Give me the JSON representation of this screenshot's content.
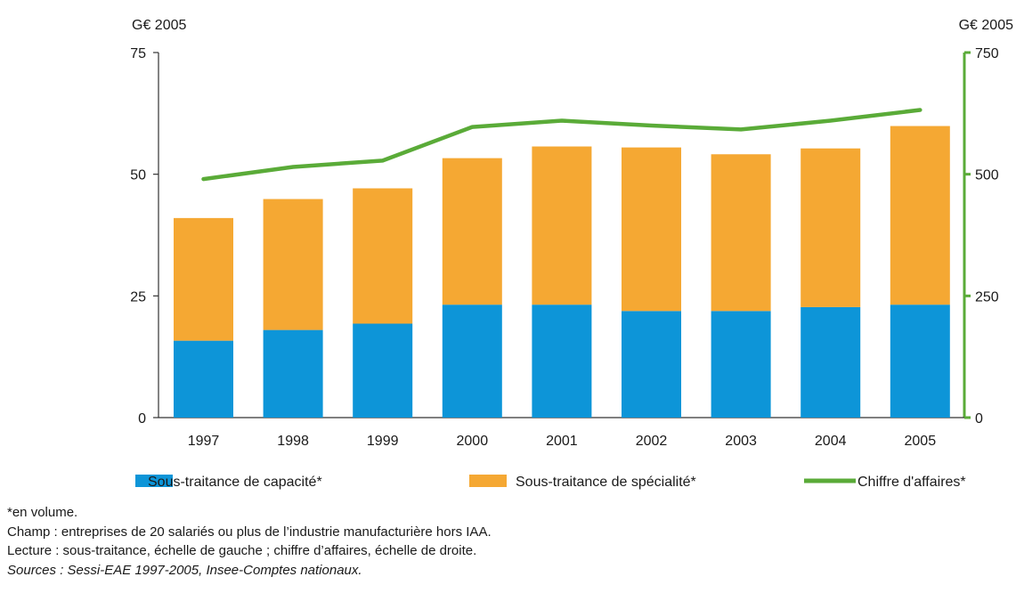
{
  "chart_data": {
    "type": "bar",
    "stacked": true,
    "categories": [
      "1997",
      "1998",
      "1999",
      "2000",
      "2001",
      "2002",
      "2003",
      "2004",
      "2005"
    ],
    "series": [
      {
        "name": "Sous-traitance de capacité*",
        "chart": "bar",
        "axis": "left",
        "color": "#0d95d8",
        "values": [
          15.8,
          18.0,
          19.3,
          23.2,
          23.2,
          21.9,
          21.9,
          22.7,
          23.2
        ]
      },
      {
        "name": "Sous-traitance de spécialité*",
        "chart": "bar",
        "axis": "left",
        "color": "#f5a833",
        "values": [
          25.2,
          26.9,
          27.8,
          30.1,
          32.5,
          33.6,
          32.2,
          32.6,
          36.7
        ]
      },
      {
        "name": "Chiffre d'affaires*",
        "chart": "line",
        "axis": "right",
        "color": "#5aab38",
        "values": [
          490,
          515,
          528,
          597,
          610,
          600,
          592,
          610,
          632
        ]
      }
    ],
    "left_axis": {
      "unit": "G€ 2005",
      "ylim": [
        0,
        75
      ],
      "ticks": [
        "0",
        "25",
        "50",
        "75"
      ]
    },
    "right_axis": {
      "unit": "G€ 2005",
      "ylim": [
        0,
        750
      ],
      "ticks": [
        "0",
        "250",
        "500",
        "750"
      ]
    },
    "grid": false,
    "legend_position": "bottom"
  },
  "notes": {
    "volume": "*en volume.",
    "champ": "Champ : entreprises de 20 salariés ou plus de l’industrie manufacturière hors IAA.",
    "lecture": "Lecture : sous-traitance, échelle de gauche ; chiffre d’affaires, échelle de droite.",
    "sources": "Sources : Sessi-EAE 1997-2005, Insee-Comptes nationaux."
  }
}
